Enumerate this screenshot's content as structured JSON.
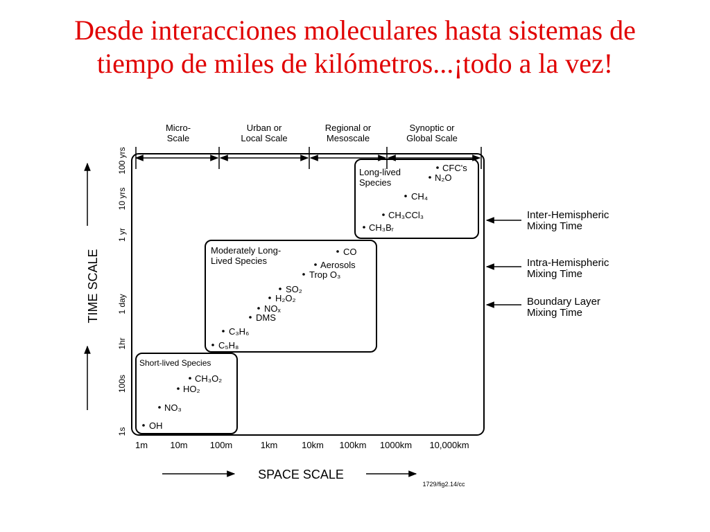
{
  "title": {
    "line1": "Desde interacciones moleculares hasta sistemas de",
    "line2": "tiempo de miles de kilómetros...¡todo a la vez!"
  },
  "scales": [
    {
      "line1": "Micro-",
      "line2": "Scale"
    },
    {
      "line1": "Urban or",
      "line2": "Local Scale"
    },
    {
      "line1": "Regional or",
      "line2": "Mesoscale"
    },
    {
      "line1": "Synoptic or",
      "line2": "Global Scale"
    }
  ],
  "axes": {
    "time_label": "TIME SCALE",
    "space_label": "SPACE SCALE",
    "time_ticks": [
      "1s",
      "100s",
      "1hr",
      "1 day",
      "1 yr",
      "10 yrs",
      "100 yrs"
    ],
    "space_ticks": [
      "1m",
      "10m",
      "100m",
      "1km",
      "10km",
      "100km",
      "1000km",
      "10,000km"
    ]
  },
  "groups": {
    "long": {
      "title_line1": "Long-lived",
      "title_line2": "Species",
      "species": [
        {
          "name": "CFC's"
        },
        {
          "name": "N₂O"
        },
        {
          "name": "CH₄"
        },
        {
          "name": "CH₃CCl₃"
        },
        {
          "name": "CH₃Bᵣ"
        }
      ]
    },
    "moderate": {
      "title_line1": "Moderately Long-",
      "title_line2": "Lived Species",
      "species": [
        {
          "name": "CO"
        },
        {
          "name": "Aerosols"
        },
        {
          "name": "Trop O₃"
        },
        {
          "name": "SO₂"
        },
        {
          "name": "H₂O₂"
        },
        {
          "name": "NOₓ"
        },
        {
          "name": "DMS"
        },
        {
          "name": "C₃H₆"
        },
        {
          "name": "C₅H₈"
        }
      ]
    },
    "short": {
      "title_line1": "Short-lived Species",
      "species": [
        {
          "name": "CH₃O₂"
        },
        {
          "name": "HO₂"
        },
        {
          "name": "NO₃"
        },
        {
          "name": "OH"
        }
      ]
    }
  },
  "mixing_times": [
    {
      "line1": "Inter-Hemispheric",
      "line2": "Mixing Time"
    },
    {
      "line1": "Intra-Hemispheric",
      "line2": "Mixing Time"
    },
    {
      "line1": "Boundary Layer",
      "line2": "Mixing Time"
    }
  ],
  "figure_ref": "1729/fig2.14/cc",
  "colors": {
    "title": "#e00000",
    "ink": "#000000"
  }
}
